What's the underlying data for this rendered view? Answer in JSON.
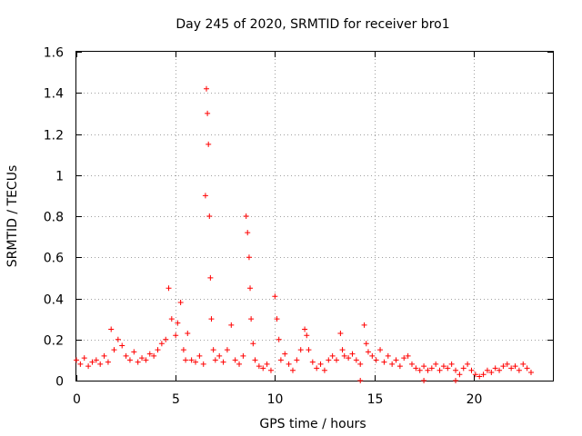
{
  "chart_data": {
    "type": "scatter",
    "title": "Day 245 of 2020, SRMTID for receiver bro1",
    "xlabel": "GPS time / hours",
    "ylabel": "SRMTID / TECUs",
    "xlim": [
      0,
      24
    ],
    "ylim": [
      0,
      1.6
    ],
    "xticks": [
      0,
      5,
      10,
      15,
      20
    ],
    "yticks": [
      0,
      0.2,
      0.4,
      0.6,
      0.8,
      1,
      1.2,
      1.4,
      1.6
    ],
    "xtick_labels": [
      "0",
      "5",
      "10",
      "15",
      "20"
    ],
    "ytick_labels": [
      "0",
      "0.2",
      "0.4",
      "0.6",
      "0.8",
      "1",
      "1.2",
      "1.4",
      "1.6"
    ],
    "grid": true,
    "series": [
      {
        "name": "SRMTID",
        "color": "#ff0000",
        "marker": "plus",
        "x": [
          0.0,
          0.2,
          0.4,
          0.6,
          0.8,
          1.0,
          1.2,
          1.4,
          1.6,
          1.75,
          1.9,
          2.1,
          2.3,
          2.5,
          2.7,
          2.9,
          3.1,
          3.3,
          3.5,
          3.7,
          3.9,
          4.1,
          4.3,
          4.5,
          4.65,
          4.8,
          5.0,
          5.1,
          5.25,
          5.4,
          5.5,
          5.6,
          5.8,
          6.0,
          6.2,
          6.4,
          6.5,
          6.55,
          6.6,
          6.65,
          6.7,
          6.75,
          6.8,
          6.9,
          7.0,
          7.2,
          7.4,
          7.6,
          7.8,
          8.0,
          8.2,
          8.4,
          8.55,
          8.62,
          8.7,
          8.75,
          8.8,
          8.9,
          9.0,
          9.2,
          9.4,
          9.6,
          9.8,
          10.0,
          10.1,
          10.2,
          10.3,
          10.5,
          10.7,
          10.9,
          11.1,
          11.3,
          11.5,
          11.6,
          11.7,
          11.9,
          12.1,
          12.3,
          12.5,
          12.7,
          12.9,
          13.1,
          13.3,
          13.4,
          13.5,
          13.7,
          13.9,
          14.1,
          14.3,
          14.5,
          14.6,
          14.7,
          14.9,
          15.1,
          15.3,
          15.5,
          15.7,
          15.9,
          16.1,
          16.3,
          16.5,
          16.7,
          16.9,
          17.1,
          17.3,
          17.5,
          17.7,
          17.9,
          18.1,
          18.3,
          18.5,
          18.7,
          18.9,
          19.1,
          19.3,
          19.5,
          19.7,
          19.9,
          20.1,
          20.3,
          20.5,
          20.7,
          20.9,
          21.1,
          21.3,
          21.5,
          21.7,
          21.9,
          22.1,
          22.3,
          22.5,
          22.7,
          22.9,
          14.3,
          17.5,
          19.1
        ],
        "y": [
          0.1,
          0.08,
          0.11,
          0.07,
          0.09,
          0.1,
          0.08,
          0.12,
          0.09,
          0.25,
          0.15,
          0.2,
          0.17,
          0.12,
          0.1,
          0.14,
          0.09,
          0.11,
          0.1,
          0.13,
          0.12,
          0.15,
          0.18,
          0.2,
          0.45,
          0.3,
          0.22,
          0.28,
          0.38,
          0.15,
          0.1,
          0.23,
          0.1,
          0.09,
          0.12,
          0.08,
          0.9,
          1.42,
          1.3,
          1.15,
          0.8,
          0.5,
          0.3,
          0.15,
          0.1,
          0.12,
          0.09,
          0.15,
          0.27,
          0.1,
          0.08,
          0.12,
          0.8,
          0.72,
          0.6,
          0.45,
          0.3,
          0.18,
          0.1,
          0.07,
          0.06,
          0.08,
          0.05,
          0.41,
          0.3,
          0.2,
          0.1,
          0.13,
          0.08,
          0.05,
          0.1,
          0.15,
          0.25,
          0.22,
          0.15,
          0.09,
          0.06,
          0.08,
          0.05,
          0.1,
          0.12,
          0.1,
          0.23,
          0.15,
          0.12,
          0.11,
          0.13,
          0.1,
          0.08,
          0.27,
          0.18,
          0.14,
          0.12,
          0.1,
          0.15,
          0.09,
          0.12,
          0.08,
          0.1,
          0.07,
          0.11,
          0.12,
          0.08,
          0.06,
          0.05,
          0.07,
          0.05,
          0.06,
          0.08,
          0.05,
          0.07,
          0.06,
          0.08,
          0.05,
          0.03,
          0.06,
          0.08,
          0.05,
          0.03,
          0.02,
          0.03,
          0.05,
          0.04,
          0.06,
          0.05,
          0.07,
          0.08,
          0.06,
          0.07,
          0.05,
          0.08,
          0.06,
          0.04,
          0.0,
          0.0,
          0.0
        ]
      }
    ]
  }
}
